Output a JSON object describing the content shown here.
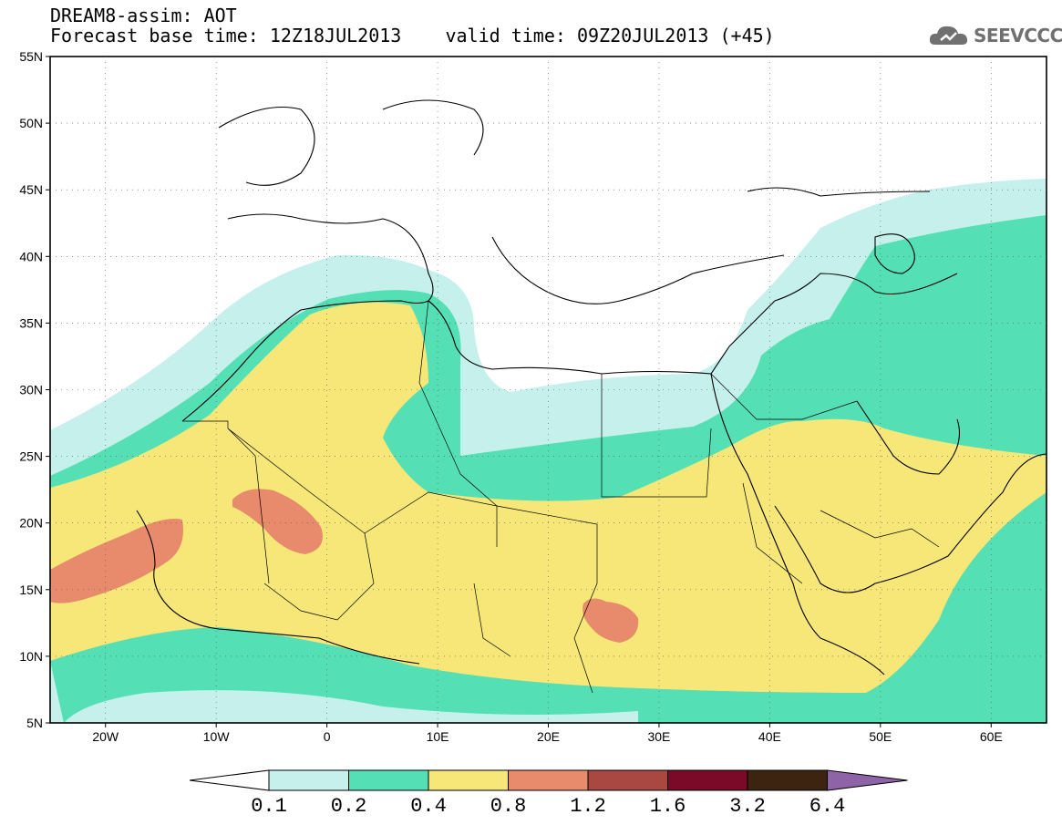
{
  "header": {
    "title_line1": "DREAM8-assim: AOT",
    "title_line2": "Forecast base time: 12Z18JUL2013    valid time: 09Z20JUL2013 (+45)",
    "logo_text": "SEEVCCC"
  },
  "map": {
    "lat_labels": [
      "55N",
      "50N",
      "45N",
      "40N",
      "35N",
      "30N",
      "25N",
      "20N",
      "15N",
      "10N",
      "5N"
    ],
    "lon_labels": [
      "20W",
      "10W",
      "0",
      "10E",
      "20E",
      "30E",
      "40E",
      "50E",
      "60E"
    ],
    "extent": {
      "lon_min": -25,
      "lon_max": 65,
      "lat_min": 5,
      "lat_max": 55
    }
  },
  "colorbar": {
    "labels": [
      "0.1",
      "0.2",
      "0.4",
      "0.8",
      "1.2",
      "1.6",
      "3.2",
      "6.4"
    ],
    "colors": [
      "#ffffff",
      "#c6f0ec",
      "#55dfb4",
      "#f6e778",
      "#e88a6c",
      "#a84840",
      "#7a0a28",
      "#3d2410",
      "#8e63a8"
    ]
  },
  "colors": {
    "c01": "#c6f0ec",
    "c02": "#55dfb4",
    "c04": "#f6e778",
    "c08": "#e88a6c"
  }
}
